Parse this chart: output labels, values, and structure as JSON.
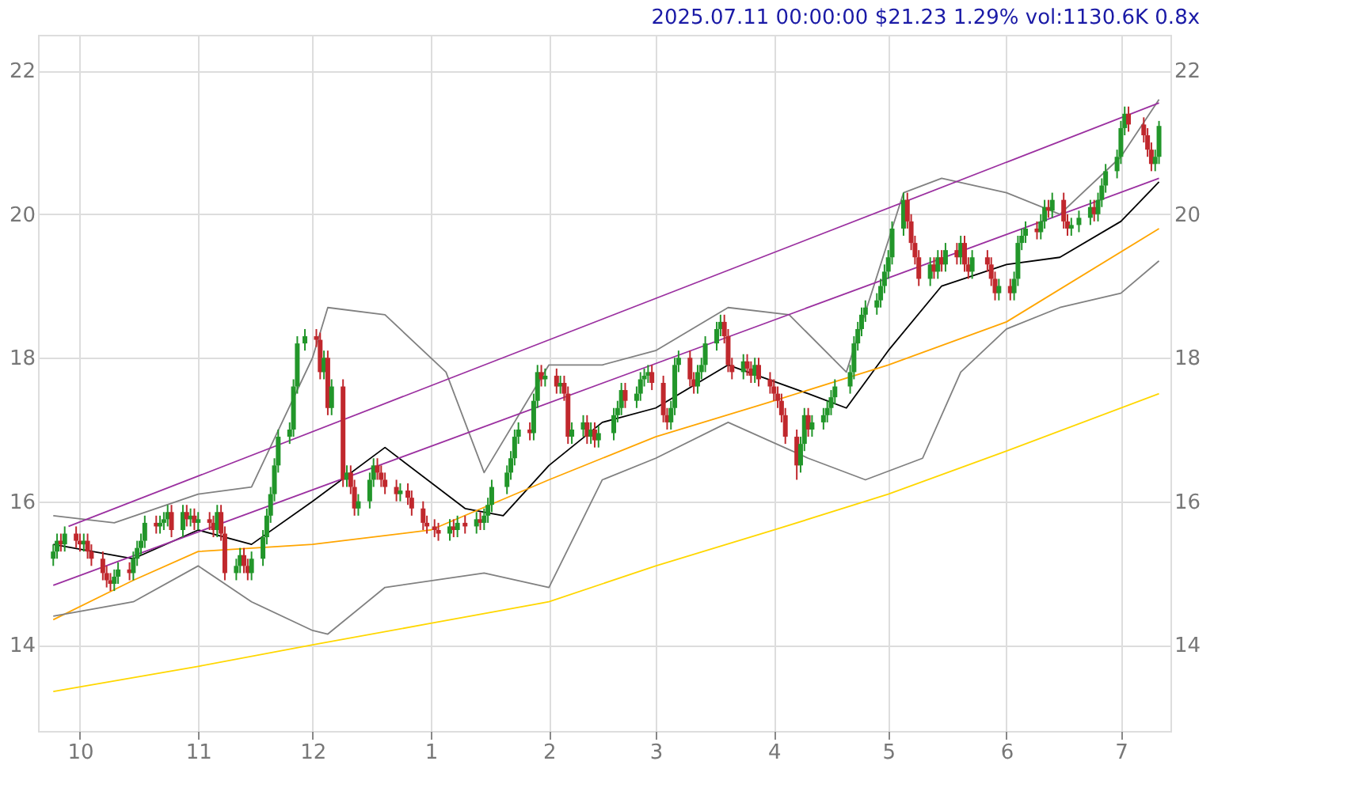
{
  "chart_data": {
    "type": "candlestick",
    "title": "2025.07.11 00:00:00 $21.23 1.29% vol:1130.6K 0.8x",
    "xlim": [
      "2024-09-20",
      "2025-07-14"
    ],
    "xticks": [
      {
        "value": "2024-10-01",
        "label": "10"
      },
      {
        "value": "2024-11-01",
        "label": "11"
      },
      {
        "value": "2024-12-01",
        "label": "12"
      },
      {
        "value": "2025-01-01",
        "label": "1"
      },
      {
        "value": "2025-02-01",
        "label": "2"
      },
      {
        "value": "2025-03-01",
        "label": "3"
      },
      {
        "value": "2025-04-01",
        "label": "4"
      },
      {
        "value": "2025-05-01",
        "label": "5"
      },
      {
        "value": "2025-06-01",
        "label": "6"
      },
      {
        "value": "2025-07-01",
        "label": "7"
      }
    ],
    "ylim": [
      12.8,
      22.5
    ],
    "yticks": [
      14,
      16,
      18,
      20,
      22
    ],
    "y2lim": [
      12.8,
      22.5
    ],
    "y2ticks": [
      14,
      16,
      18,
      20,
      22
    ],
    "grid": true,
    "x": [
      "2024-09-24",
      "2024-09-25",
      "2024-09-26",
      "2024-09-27",
      "2024-09-30",
      "2024-10-01",
      "2024-10-02",
      "2024-10-03",
      "2024-10-04",
      "2024-10-07",
      "2024-10-08",
      "2024-10-09",
      "2024-10-10",
      "2024-10-11",
      "2024-10-14",
      "2024-10-15",
      "2024-10-16",
      "2024-10-17",
      "2024-10-18",
      "2024-10-21",
      "2024-10-22",
      "2024-10-23",
      "2024-10-24",
      "2024-10-25",
      "2024-10-28",
      "2024-10-29",
      "2024-10-30",
      "2024-10-31",
      "2024-11-01",
      "2024-11-04",
      "2024-11-05",
      "2024-11-06",
      "2024-11-07",
      "2024-11-08",
      "2024-11-11",
      "2024-11-12",
      "2024-11-13",
      "2024-11-14",
      "2024-11-15",
      "2024-11-18",
      "2024-11-19",
      "2024-11-20",
      "2024-11-21",
      "2024-11-22",
      "2024-11-25",
      "2024-11-26",
      "2024-11-27",
      "2024-11-29",
      "2024-12-02",
      "2024-12-03",
      "2024-12-04",
      "2024-12-05",
      "2024-12-06",
      "2024-12-09",
      "2024-12-10",
      "2024-12-11",
      "2024-12-12",
      "2024-12-13",
      "2024-12-16",
      "2024-12-17",
      "2024-12-18",
      "2024-12-19",
      "2024-12-20",
      "2024-12-23",
      "2024-12-24",
      "2024-12-26",
      "2024-12-27",
      "2024-12-30",
      "2024-12-31",
      "2025-01-02",
      "2025-01-03",
      "2025-01-06",
      "2025-01-07",
      "2025-01-08",
      "2025-01-10",
      "2025-01-13",
      "2025-01-14",
      "2025-01-15",
      "2025-01-16",
      "2025-01-17",
      "2025-01-21",
      "2025-01-22",
      "2025-01-23",
      "2025-01-24",
      "2025-01-27",
      "2025-01-28",
      "2025-01-29",
      "2025-01-30",
      "2025-01-31",
      "2025-02-03",
      "2025-02-04",
      "2025-02-05",
      "2025-02-06",
      "2025-02-07",
      "2025-02-10",
      "2025-02-11",
      "2025-02-12",
      "2025-02-13",
      "2025-02-14",
      "2025-02-18",
      "2025-02-19",
      "2025-02-20",
      "2025-02-21",
      "2025-02-24",
      "2025-02-25",
      "2025-02-26",
      "2025-02-27",
      "2025-02-28",
      "2025-03-03",
      "2025-03-04",
      "2025-03-05",
      "2025-03-06",
      "2025-03-07",
      "2025-03-10",
      "2025-03-11",
      "2025-03-12",
      "2025-03-13",
      "2025-03-14",
      "2025-03-17",
      "2025-03-18",
      "2025-03-19",
      "2025-03-20",
      "2025-03-21",
      "2025-03-24",
      "2025-03-25",
      "2025-03-26",
      "2025-03-27",
      "2025-03-28",
      "2025-03-31",
      "2025-04-01",
      "2025-04-02",
      "2025-04-03",
      "2025-04-04",
      "2025-04-07",
      "2025-04-08",
      "2025-04-09",
      "2025-04-10",
      "2025-04-11",
      "2025-04-14",
      "2025-04-15",
      "2025-04-16",
      "2025-04-17",
      "2025-04-21",
      "2025-04-22",
      "2025-04-23",
      "2025-04-24",
      "2025-04-25",
      "2025-04-28",
      "2025-04-29",
      "2025-04-30",
      "2025-05-01",
      "2025-05-02",
      "2025-05-05",
      "2025-05-06",
      "2025-05-07",
      "2025-05-08",
      "2025-05-09",
      "2025-05-12",
      "2025-05-13",
      "2025-05-14",
      "2025-05-15",
      "2025-05-16",
      "2025-05-19",
      "2025-05-20",
      "2025-05-21",
      "2025-05-22",
      "2025-05-23",
      "2025-05-27",
      "2025-05-28",
      "2025-05-29",
      "2025-05-30",
      "2025-06-02",
      "2025-06-03",
      "2025-06-04",
      "2025-06-05",
      "2025-06-06",
      "2025-06-09",
      "2025-06-10",
      "2025-06-11",
      "2025-06-12",
      "2025-06-13",
      "2025-06-16",
      "2025-06-17",
      "2025-06-18",
      "2025-06-20",
      "2025-06-23",
      "2025-06-24",
      "2025-06-25",
      "2025-06-26",
      "2025-06-27",
      "2025-06-30",
      "2025-07-01",
      "2025-07-02",
      "2025-07-03",
      "2025-07-07",
      "2025-07-08",
      "2025-07-09",
      "2025-07-10",
      "2025-07-11"
    ],
    "ohlc": [
      [
        15.2,
        15.4,
        15.1,
        15.3
      ],
      [
        15.3,
        15.55,
        15.2,
        15.45
      ],
      [
        15.45,
        15.55,
        15.3,
        15.4
      ],
      [
        15.4,
        15.65,
        15.3,
        15.55
      ],
      [
        15.55,
        15.65,
        15.35,
        15.45
      ],
      [
        15.45,
        15.55,
        15.3,
        15.4
      ],
      [
        15.4,
        15.55,
        15.3,
        15.45
      ],
      [
        15.45,
        15.55,
        15.2,
        15.3
      ],
      [
        15.3,
        15.4,
        15.1,
        15.2
      ],
      [
        15.2,
        15.3,
        14.9,
        15.0
      ],
      [
        15.0,
        15.1,
        14.8,
        14.9
      ],
      [
        14.9,
        15.0,
        14.75,
        14.85
      ],
      [
        14.85,
        15.05,
        14.75,
        14.95
      ],
      [
        14.95,
        15.15,
        14.85,
        15.05
      ],
      [
        15.05,
        15.15,
        14.9,
        15.0
      ],
      [
        15.0,
        15.3,
        14.9,
        15.2
      ],
      [
        15.2,
        15.45,
        15.1,
        15.35
      ],
      [
        15.35,
        15.55,
        15.25,
        15.45
      ],
      [
        15.45,
        15.8,
        15.35,
        15.7
      ],
      [
        15.7,
        15.8,
        15.55,
        15.65
      ],
      [
        15.65,
        15.8,
        15.55,
        15.7
      ],
      [
        15.7,
        15.85,
        15.6,
        15.75
      ],
      [
        15.75,
        15.95,
        15.65,
        15.85
      ],
      [
        15.85,
        15.95,
        15.5,
        15.6
      ],
      [
        15.6,
        15.95,
        15.5,
        15.85
      ],
      [
        15.85,
        15.95,
        15.65,
        15.75
      ],
      [
        15.75,
        15.9,
        15.65,
        15.8
      ],
      [
        15.8,
        15.9,
        15.6,
        15.7
      ],
      [
        15.7,
        15.85,
        15.6,
        15.75
      ],
      [
        15.75,
        15.85,
        15.6,
        15.7
      ],
      [
        15.7,
        15.8,
        15.5,
        15.6
      ],
      [
        15.6,
        15.95,
        15.5,
        15.85
      ],
      [
        15.85,
        15.95,
        15.45,
        15.55
      ],
      [
        15.55,
        15.65,
        14.9,
        15.0
      ],
      [
        15.0,
        15.2,
        14.9,
        15.1
      ],
      [
        15.1,
        15.35,
        15.0,
        15.25
      ],
      [
        15.25,
        15.35,
        15.0,
        15.1
      ],
      [
        15.1,
        15.2,
        14.9,
        15.0
      ],
      [
        15.0,
        15.3,
        14.9,
        15.2
      ],
      [
        15.2,
        15.6,
        15.1,
        15.5
      ],
      [
        15.5,
        15.9,
        15.4,
        15.8
      ],
      [
        15.8,
        16.2,
        15.7,
        16.1
      ],
      [
        16.1,
        16.6,
        16.0,
        16.5
      ],
      [
        16.5,
        17.0,
        16.4,
        16.9
      ],
      [
        16.9,
        17.1,
        16.8,
        17.0
      ],
      [
        17.0,
        17.7,
        16.9,
        17.6
      ],
      [
        17.6,
        18.3,
        17.5,
        18.2
      ],
      [
        18.2,
        18.4,
        18.1,
        18.3
      ],
      [
        18.3,
        18.4,
        18.15,
        18.25
      ],
      [
        18.25,
        18.35,
        17.7,
        17.8
      ],
      [
        17.8,
        18.1,
        17.7,
        18.0
      ],
      [
        18.0,
        18.1,
        17.2,
        17.3
      ],
      [
        17.3,
        17.7,
        17.2,
        17.6
      ],
      [
        17.6,
        17.7,
        16.2,
        16.3
      ],
      [
        16.3,
        16.5,
        16.2,
        16.4
      ],
      [
        16.4,
        16.5,
        16.1,
        16.2
      ],
      [
        16.2,
        16.3,
        15.8,
        15.9
      ],
      [
        15.9,
        16.1,
        15.8,
        16.0
      ],
      [
        16.0,
        16.4,
        15.9,
        16.3
      ],
      [
        16.3,
        16.6,
        16.2,
        16.5
      ],
      [
        16.5,
        16.6,
        16.3,
        16.4
      ],
      [
        16.4,
        16.5,
        16.2,
        16.3
      ],
      [
        16.3,
        16.4,
        16.1,
        16.2
      ],
      [
        16.2,
        16.3,
        16.0,
        16.1
      ],
      [
        16.1,
        16.25,
        16.0,
        16.15
      ],
      [
        16.15,
        16.25,
        15.95,
        16.05
      ],
      [
        16.05,
        16.15,
        15.8,
        15.9
      ],
      [
        15.9,
        16.0,
        15.6,
        15.7
      ],
      [
        15.7,
        15.8,
        15.55,
        15.65
      ],
      [
        15.65,
        15.75,
        15.5,
        15.6
      ],
      [
        15.6,
        15.7,
        15.45,
        15.55
      ],
      [
        15.55,
        15.75,
        15.45,
        15.65
      ],
      [
        15.65,
        15.75,
        15.5,
        15.6
      ],
      [
        15.6,
        15.8,
        15.5,
        15.7
      ],
      [
        15.7,
        15.8,
        15.55,
        15.65
      ],
      [
        15.65,
        15.85,
        15.55,
        15.75
      ],
      [
        15.75,
        15.85,
        15.6,
        15.7
      ],
      [
        15.7,
        15.9,
        15.6,
        15.8
      ],
      [
        15.8,
        16.05,
        15.7,
        15.95
      ],
      [
        15.95,
        16.3,
        15.85,
        16.2
      ],
      [
        16.2,
        16.5,
        16.1,
        16.4
      ],
      [
        16.4,
        16.7,
        16.3,
        16.6
      ],
      [
        16.6,
        17.0,
        16.5,
        16.9
      ],
      [
        16.9,
        17.1,
        16.8,
        17.0
      ],
      [
        17.0,
        17.1,
        16.85,
        16.95
      ],
      [
        16.95,
        17.5,
        16.85,
        17.4
      ],
      [
        17.4,
        17.9,
        17.3,
        17.8
      ],
      [
        17.8,
        17.9,
        17.6,
        17.7
      ],
      [
        17.7,
        17.85,
        17.6,
        17.75
      ],
      [
        17.75,
        17.85,
        17.5,
        17.6
      ],
      [
        17.6,
        17.75,
        17.5,
        17.65
      ],
      [
        17.65,
        17.75,
        17.4,
        17.5
      ],
      [
        17.5,
        17.6,
        16.8,
        16.9
      ],
      [
        16.9,
        17.1,
        16.8,
        17.0
      ],
      [
        17.0,
        17.2,
        16.9,
        17.1
      ],
      [
        17.1,
        17.2,
        16.8,
        16.9
      ],
      [
        16.9,
        17.1,
        16.8,
        17.0
      ],
      [
        17.0,
        17.1,
        16.75,
        16.85
      ],
      [
        16.85,
        17.05,
        16.75,
        16.95
      ],
      [
        16.95,
        17.3,
        16.85,
        17.2
      ],
      [
        17.2,
        17.4,
        17.1,
        17.3
      ],
      [
        17.3,
        17.65,
        17.2,
        17.55
      ],
      [
        17.55,
        17.65,
        17.3,
        17.4
      ],
      [
        17.4,
        17.6,
        17.3,
        17.5
      ],
      [
        17.5,
        17.8,
        17.4,
        17.7
      ],
      [
        17.7,
        17.85,
        17.6,
        17.75
      ],
      [
        17.75,
        17.9,
        17.65,
        17.8
      ],
      [
        17.8,
        17.9,
        17.55,
        17.65
      ],
      [
        17.65,
        17.75,
        17.1,
        17.2
      ],
      [
        17.2,
        17.3,
        17.0,
        17.1
      ],
      [
        17.1,
        17.4,
        17.0,
        17.3
      ],
      [
        17.3,
        18.0,
        17.2,
        17.9
      ],
      [
        17.9,
        18.1,
        17.8,
        18.0
      ],
      [
        18.0,
        18.1,
        17.6,
        17.7
      ],
      [
        17.7,
        17.8,
        17.5,
        17.6
      ],
      [
        17.6,
        17.9,
        17.5,
        17.8
      ],
      [
        17.8,
        18.0,
        17.7,
        17.9
      ],
      [
        17.9,
        18.3,
        17.8,
        18.2
      ],
      [
        18.2,
        18.5,
        18.1,
        18.4
      ],
      [
        18.4,
        18.6,
        18.3,
        18.5
      ],
      [
        18.5,
        18.6,
        18.2,
        18.3
      ],
      [
        18.3,
        18.4,
        17.8,
        17.9
      ],
      [
        17.9,
        18.0,
        17.7,
        17.8
      ],
      [
        17.8,
        18.05,
        17.7,
        17.95
      ],
      [
        17.95,
        18.05,
        17.75,
        17.85
      ],
      [
        17.85,
        17.95,
        17.65,
        17.75
      ],
      [
        17.75,
        18.0,
        17.65,
        17.9
      ],
      [
        17.9,
        18.0,
        17.6,
        17.7
      ],
      [
        17.7,
        17.8,
        17.5,
        17.6
      ],
      [
        17.6,
        17.7,
        17.4,
        17.5
      ],
      [
        17.5,
        17.6,
        17.3,
        17.4
      ],
      [
        17.4,
        17.5,
        17.1,
        17.2
      ],
      [
        17.2,
        17.3,
        16.8,
        16.9
      ],
      [
        16.9,
        17.0,
        16.3,
        16.5
      ],
      [
        16.5,
        16.9,
        16.4,
        16.8
      ],
      [
        16.8,
        17.3,
        16.7,
        17.2
      ],
      [
        17.2,
        17.3,
        16.9,
        17.0
      ],
      [
        17.0,
        17.2,
        16.9,
        17.1
      ],
      [
        17.1,
        17.3,
        17.0,
        17.2
      ],
      [
        17.2,
        17.4,
        17.1,
        17.3
      ],
      [
        17.3,
        17.55,
        17.2,
        17.45
      ],
      [
        17.45,
        17.7,
        17.35,
        17.6
      ],
      [
        17.6,
        17.9,
        17.5,
        17.8
      ],
      [
        17.8,
        18.3,
        17.7,
        18.2
      ],
      [
        18.2,
        18.5,
        18.1,
        18.4
      ],
      [
        18.4,
        18.7,
        18.3,
        18.6
      ],
      [
        18.6,
        18.8,
        18.5,
        18.7
      ],
      [
        18.7,
        18.9,
        18.6,
        18.8
      ],
      [
        18.8,
        19.1,
        18.7,
        19.0
      ],
      [
        19.0,
        19.3,
        18.9,
        19.2
      ],
      [
        19.2,
        19.5,
        19.1,
        19.4
      ],
      [
        19.4,
        19.9,
        19.3,
        19.8
      ],
      [
        19.8,
        20.3,
        19.7,
        20.2
      ],
      [
        20.2,
        20.3,
        19.8,
        19.9
      ],
      [
        19.9,
        20.0,
        19.5,
        19.6
      ],
      [
        19.6,
        19.7,
        19.3,
        19.4
      ],
      [
        19.4,
        19.5,
        19.0,
        19.1
      ],
      [
        19.1,
        19.4,
        19.0,
        19.3
      ],
      [
        19.3,
        19.4,
        19.1,
        19.2
      ],
      [
        19.2,
        19.5,
        19.1,
        19.4
      ],
      [
        19.4,
        19.5,
        19.2,
        19.3
      ],
      [
        19.3,
        19.6,
        19.2,
        19.5
      ],
      [
        19.5,
        19.6,
        19.3,
        19.4
      ],
      [
        19.4,
        19.7,
        19.3,
        19.6
      ],
      [
        19.6,
        19.7,
        19.2,
        19.3
      ],
      [
        19.3,
        19.4,
        19.1,
        19.2
      ],
      [
        19.2,
        19.5,
        19.1,
        19.4
      ],
      [
        19.4,
        19.5,
        19.2,
        19.3
      ],
      [
        19.3,
        19.4,
        19.0,
        19.1
      ],
      [
        19.1,
        19.2,
        18.8,
        18.9
      ],
      [
        18.9,
        19.1,
        18.8,
        19.0
      ],
      [
        19.0,
        19.1,
        18.8,
        18.9
      ],
      [
        18.9,
        19.2,
        18.8,
        19.1
      ],
      [
        19.1,
        19.7,
        19.0,
        19.6
      ],
      [
        19.6,
        19.8,
        19.5,
        19.7
      ],
      [
        19.7,
        19.9,
        19.6,
        19.8
      ],
      [
        19.8,
        19.9,
        19.65,
        19.75
      ],
      [
        19.75,
        20.0,
        19.65,
        19.9
      ],
      [
        19.9,
        20.2,
        19.8,
        20.1
      ],
      [
        20.1,
        20.2,
        19.95,
        20.05
      ],
      [
        20.05,
        20.3,
        19.95,
        20.2
      ],
      [
        20.2,
        20.3,
        19.8,
        19.9
      ],
      [
        19.9,
        20.0,
        19.7,
        19.8
      ],
      [
        19.8,
        19.95,
        19.7,
        19.85
      ],
      [
        19.85,
        20.05,
        19.75,
        19.95
      ],
      [
        19.95,
        20.2,
        19.85,
        20.1
      ],
      [
        20.1,
        20.2,
        19.9,
        20.0
      ],
      [
        20.0,
        20.3,
        19.9,
        20.2
      ],
      [
        20.2,
        20.5,
        20.1,
        20.4
      ],
      [
        20.4,
        20.7,
        20.3,
        20.6
      ],
      [
        20.6,
        20.9,
        20.5,
        20.8
      ],
      [
        20.8,
        21.3,
        20.7,
        21.2
      ],
      [
        21.2,
        21.5,
        21.1,
        21.4
      ],
      [
        21.4,
        21.5,
        21.15,
        21.25
      ],
      [
        21.25,
        21.35,
        21.0,
        21.1
      ],
      [
        21.1,
        21.2,
        20.8,
        20.9
      ],
      [
        20.9,
        21.0,
        20.6,
        20.7
      ],
      [
        20.7,
        20.9,
        20.6,
        20.8
      ],
      [
        20.8,
        21.3,
        20.7,
        21.23
      ]
    ],
    "colors": [
      "#22962a",
      "#22962a",
      "#c0282d",
      "#22962a",
      "#c0282d",
      "#c0282d",
      "#22962a",
      "#c0282d",
      "#c0282d",
      "#c0282d",
      "#c0282d",
      "#c0282d",
      "#22962a",
      "#22962a",
      "#c0282d",
      "#22962a",
      "#22962a",
      "#22962a",
      "#22962a",
      "#c0282d",
      "#22962a",
      "#22962a",
      "#22962a",
      "#c0282d",
      "#22962a",
      "#c0282d",
      "#22962a",
      "#c0282d",
      "#22962a",
      "#c0282d",
      "#c0282d",
      "#22962a",
      "#c0282d",
      "#c0282d",
      "#22962a",
      "#22962a",
      "#c0282d",
      "#c0282d",
      "#22962a",
      "#22962a",
      "#22962a",
      "#22962a",
      "#22962a",
      "#22962a",
      "#22962a",
      "#22962a",
      "#22962a",
      "#22962a",
      "#c0282d",
      "#c0282d",
      "#22962a",
      "#c0282d",
      "#22962a",
      "#c0282d",
      "#22962a",
      "#c0282d",
      "#c0282d",
      "#22962a",
      "#22962a",
      "#22962a",
      "#c0282d",
      "#c0282d",
      "#c0282d",
      "#c0282d",
      "#22962a",
      "#c0282d",
      "#c0282d",
      "#c0282d",
      "#c0282d",
      "#c0282d",
      "#c0282d",
      "#22962a",
      "#c0282d",
      "#22962a",
      "#c0282d",
      "#22962a",
      "#c0282d",
      "#22962a",
      "#22962a",
      "#22962a",
      "#22962a",
      "#22962a",
      "#22962a",
      "#22962a",
      "#c0282d",
      "#22962a",
      "#22962a",
      "#c0282d",
      "#22962a",
      "#c0282d",
      "#22962a",
      "#c0282d",
      "#c0282d",
      "#22962a",
      "#22962a",
      "#c0282d",
      "#22962a",
      "#c0282d",
      "#22962a",
      "#22962a",
      "#22962a",
      "#22962a",
      "#c0282d",
      "#22962a",
      "#22962a",
      "#22962a",
      "#22962a",
      "#c0282d",
      "#c0282d",
      "#c0282d",
      "#22962a",
      "#22962a",
      "#22962a",
      "#c0282d",
      "#c0282d",
      "#22962a",
      "#22962a",
      "#22962a",
      "#22962a",
      "#22962a",
      "#c0282d",
      "#c0282d",
      "#c0282d",
      "#22962a",
      "#c0282d",
      "#c0282d",
      "#22962a",
      "#c0282d",
      "#c0282d",
      "#c0282d",
      "#c0282d",
      "#c0282d",
      "#c0282d",
      "#c0282d",
      "#22962a",
      "#22962a",
      "#c0282d",
      "#22962a",
      "#22962a",
      "#22962a",
      "#22962a",
      "#22962a",
      "#22962a",
      "#22962a",
      "#22962a",
      "#22962a",
      "#22962a",
      "#22962a",
      "#22962a",
      "#22962a",
      "#22962a",
      "#22962a",
      "#22962a",
      "#c0282d",
      "#c0282d",
      "#c0282d",
      "#c0282d",
      "#22962a",
      "#c0282d",
      "#22962a",
      "#c0282d",
      "#22962a",
      "#c0282d",
      "#22962a",
      "#c0282d",
      "#c0282d",
      "#22962a",
      "#c0282d",
      "#c0282d",
      "#c0282d",
      "#22962a",
      "#c0282d",
      "#22962a",
      "#22962a",
      "#22962a",
      "#22962a",
      "#c0282d",
      "#22962a",
      "#22962a",
      "#c0282d",
      "#22962a",
      "#c0282d",
      "#c0282d",
      "#22962a",
      "#22962a",
      "#22962a",
      "#c0282d",
      "#22962a",
      "#22962a",
      "#22962a",
      "#22962a",
      "#22962a",
      "#22962a",
      "#c0282d",
      "#c0282d",
      "#c0282d",
      "#c0282d",
      "#22962a",
      "#22962a"
    ],
    "series": [
      {
        "type": "line",
        "color": "#000000",
        "x": [
          "2024-09-24",
          "2024-10-15",
          "2024-11-01",
          "2024-11-15",
          "2024-12-01",
          "2024-12-20",
          "2025-01-10",
          "2025-01-20",
          "2025-02-01",
          "2025-02-15",
          "2025-03-01",
          "2025-03-20",
          "2025-04-10",
          "2025-04-20",
          "2025-05-01",
          "2025-05-15",
          "2025-06-01",
          "2025-06-15",
          "2025-07-01",
          "2025-07-11"
        ],
        "values": [
          15.4,
          15.2,
          15.6,
          15.4,
          16.0,
          16.75,
          15.9,
          15.8,
          16.5,
          17.1,
          17.3,
          17.9,
          17.5,
          17.3,
          18.1,
          19.0,
          19.3,
          19.4,
          19.9,
          20.45
        ]
      },
      {
        "type": "line",
        "color": "#ffa500",
        "x": [
          "2024-09-24",
          "2024-10-15",
          "2024-11-01",
          "2024-12-01",
          "2025-01-01",
          "2025-02-01",
          "2025-03-01",
          "2025-04-01",
          "2025-05-01",
          "2025-06-01",
          "2025-07-11"
        ],
        "values": [
          14.35,
          14.9,
          15.3,
          15.4,
          15.6,
          16.3,
          16.9,
          17.4,
          17.9,
          18.5,
          19.8
        ]
      },
      {
        "type": "line",
        "color": "#ffd700",
        "x": [
          "2024-09-24",
          "2024-11-01",
          "2024-12-01",
          "2025-01-01",
          "2025-02-01",
          "2025-03-01",
          "2025-04-01",
          "2025-05-01",
          "2025-06-01",
          "2025-07-11"
        ],
        "values": [
          13.35,
          13.7,
          14.0,
          14.3,
          14.6,
          15.1,
          15.6,
          16.1,
          16.7,
          17.5
        ]
      },
      {
        "type": "line",
        "color": "#808080",
        "x": [
          "2024-09-24",
          "2024-10-10",
          "2024-11-01",
          "2024-11-15",
          "2024-12-01",
          "2024-12-05",
          "2024-12-20",
          "2025-01-05",
          "2025-01-15",
          "2025-02-01",
          "2025-02-15",
          "2025-03-01",
          "2025-03-20",
          "2025-04-05",
          "2025-04-20",
          "2025-05-05",
          "2025-05-15",
          "2025-06-01",
          "2025-06-15",
          "2025-07-01",
          "2025-07-11"
        ],
        "values": [
          15.8,
          15.7,
          16.1,
          16.2,
          18.0,
          18.7,
          18.6,
          17.8,
          16.4,
          17.9,
          17.9,
          18.1,
          18.7,
          18.6,
          17.8,
          20.3,
          20.5,
          20.3,
          20.0,
          20.8,
          21.6
        ]
      },
      {
        "type": "line",
        "color": "#808080",
        "x": [
          "2024-09-24",
          "2024-10-15",
          "2024-11-01",
          "2024-11-15",
          "2024-12-01",
          "2024-12-05",
          "2024-12-20",
          "2025-01-15",
          "2025-02-01",
          "2025-02-15",
          "2025-03-01",
          "2025-03-20",
          "2025-04-10",
          "2025-04-25",
          "2025-05-10",
          "2025-05-20",
          "2025-06-01",
          "2025-06-15",
          "2025-07-01",
          "2025-07-11"
        ],
        "values": [
          14.4,
          14.6,
          15.1,
          14.6,
          14.2,
          14.15,
          14.8,
          15.0,
          14.8,
          16.3,
          16.6,
          17.1,
          16.6,
          16.3,
          16.6,
          17.8,
          18.4,
          18.7,
          18.9,
          19.35
        ]
      },
      {
        "type": "line",
        "color": "#9b30a0",
        "x": [
          "2024-09-28",
          "2025-07-11"
        ],
        "values": [
          15.65,
          21.55
        ]
      },
      {
        "type": "line",
        "color": "#9b30a0",
        "x": [
          "2024-09-24",
          "2025-07-11"
        ],
        "values": [
          14.83,
          20.5
        ]
      }
    ]
  }
}
